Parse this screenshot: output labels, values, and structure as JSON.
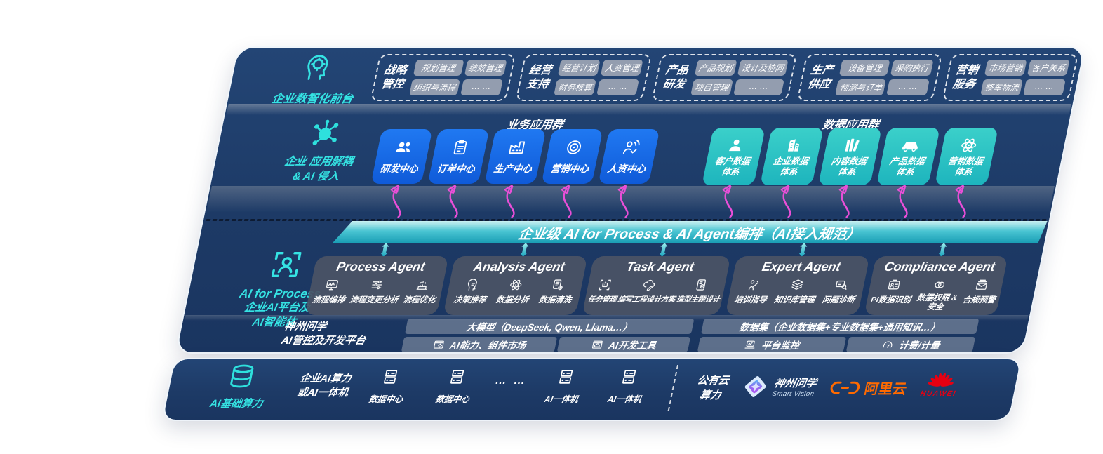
{
  "front_office": {
    "label": "企业数智化前台",
    "icon": "brain-head-icon",
    "groups": [
      {
        "title": "战略管控",
        "items": [
          "规划管理",
          "绩效管理",
          "组织与流程",
          "… …"
        ]
      },
      {
        "title": "经营支持",
        "items": [
          "经营计划",
          "人资管理",
          "财务核算",
          "… …"
        ]
      },
      {
        "title": "产品研发",
        "items": [
          "产品规划",
          "设计及协同",
          "项目管理",
          "… …"
        ]
      },
      {
        "title": "生产供应",
        "items": [
          "设备管理",
          "采购执行",
          "预测与订单",
          "… …"
        ]
      },
      {
        "title": "营销服务",
        "items": [
          "市场营销",
          "客户关系",
          "整车物流",
          "… …"
        ]
      }
    ]
  },
  "decoupling": {
    "icon": "molecule-icon",
    "label_line1": "企业 应用解耦",
    "label_line2": "& AI 侵入",
    "business_title": "业务应用群",
    "business_apps": [
      {
        "name": "研发中心",
        "icon": "team-icon"
      },
      {
        "name": "订单中心",
        "icon": "clipboard-icon"
      },
      {
        "name": "生产中心",
        "icon": "factory-icon"
      },
      {
        "name": "营销中心",
        "icon": "target-icon"
      },
      {
        "name": "人资中心",
        "icon": "person-signal-icon"
      }
    ],
    "data_title": "数据应用群",
    "data_apps": [
      {
        "name": "客户数据体系",
        "icon": "person-icon"
      },
      {
        "name": "企业数据体系",
        "icon": "building-icon"
      },
      {
        "name": "内容数据体系",
        "icon": "books-icon"
      },
      {
        "name": "产品数据体系",
        "icon": "car-icon"
      },
      {
        "name": "营销数据体系",
        "icon": "atom-icon"
      }
    ]
  },
  "banner": {
    "text": "企业级 AI for Process & AI Agent编排（AI接入规范）"
  },
  "ai_platform": {
    "icon": "person-scan-icon",
    "label_line1": "AI for Process",
    "label_line2": "企业AI平台及",
    "label_line3": "AI智能体",
    "agents": [
      {
        "title": "Process Agent",
        "capabilities": [
          {
            "name": "流程编排",
            "icon": "monitor-wave-icon"
          },
          {
            "name": "流程变更分析",
            "icon": "sliders-icon"
          },
          {
            "name": "流程优化",
            "icon": "machine-icon"
          }
        ]
      },
      {
        "title": "Analysis Agent",
        "capabilities": [
          {
            "name": "决策推荐",
            "icon": "head-chat-icon"
          },
          {
            "name": "数据分析",
            "icon": "atom-icon"
          },
          {
            "name": "数据清洗",
            "icon": "doc-gear-icon"
          }
        ]
      },
      {
        "title": "Task Agent",
        "capabilities": [
          {
            "name": "任务管理",
            "icon": "scan-bot-icon"
          },
          {
            "name": "编写工程设计方案",
            "icon": "cloud-pen-icon"
          },
          {
            "name": "造型主题设计",
            "icon": "tablet-check-icon"
          }
        ]
      },
      {
        "title": "Expert Agent",
        "capabilities": [
          {
            "name": "培训指导",
            "icon": "trainer-icon"
          },
          {
            "name": "知识库管理",
            "icon": "layers-icon"
          },
          {
            "name": "问题诊断",
            "icon": "diagnose-icon"
          }
        ]
      },
      {
        "title": "Compliance Agent",
        "capabilities": [
          {
            "name": "PI数据识别",
            "icon": "id-card-icon"
          },
          {
            "name": "数据权限 & 安全",
            "icon": "link-rings-icon"
          },
          {
            "name": "合规预警",
            "icon": "mail-alert-icon"
          }
        ]
      }
    ],
    "platform": {
      "label_line1": "神州问学",
      "label_line2": "AI管控及开发平台",
      "model_bar": "大模型（DeepSeek, Qwen, Llama…）",
      "dataset_bar": "数据集（企业数据集+专业数据集+通用知识…）",
      "tools": [
        {
          "name": "AI能力、组件市场",
          "icon": "window-gear-icon"
        },
        {
          "name": "AI开发工具",
          "icon": "window-cloud-icon"
        },
        {
          "name": "平台监控",
          "icon": "laptop-chart-icon"
        },
        {
          "name": "计费/计量",
          "icon": "gauge-icon"
        }
      ]
    }
  },
  "infrastructure": {
    "icon": "database-icon",
    "label": "AI基础算力",
    "compute_line1": "企业AI算力",
    "compute_line2": "或AI一体机",
    "nodes": [
      {
        "name": "数据中心",
        "icon": "server-icon"
      },
      {
        "name": "数据中心",
        "icon": "server-icon"
      },
      {
        "name": "… …",
        "icon": "dots"
      },
      {
        "name": "AI一体机",
        "icon": "server-icon"
      },
      {
        "name": "AI一体机",
        "icon": "server-icon"
      }
    ],
    "public_cloud_line1": "公有云",
    "public_cloud_line2": "算力",
    "vendors": [
      {
        "name": "神州问学",
        "sub": "Smart Vision",
        "icon": "smart-vision-logo"
      },
      {
        "name": "阿里云",
        "icon": "aliyun-logo"
      },
      {
        "name": "HUAWEI",
        "icon": "huawei-logo"
      }
    ]
  },
  "colors": {
    "accent_teal": "#35e3e3",
    "app_blue": "#1a6ef0",
    "data_teal": "#2cc6c6",
    "banner_teal": "#189db4",
    "arrow_pink": "#ea4fd8",
    "panel_navy": "#1d3a66",
    "huawei_red": "#e60012",
    "aliyun_orange": "#ff6a00"
  }
}
